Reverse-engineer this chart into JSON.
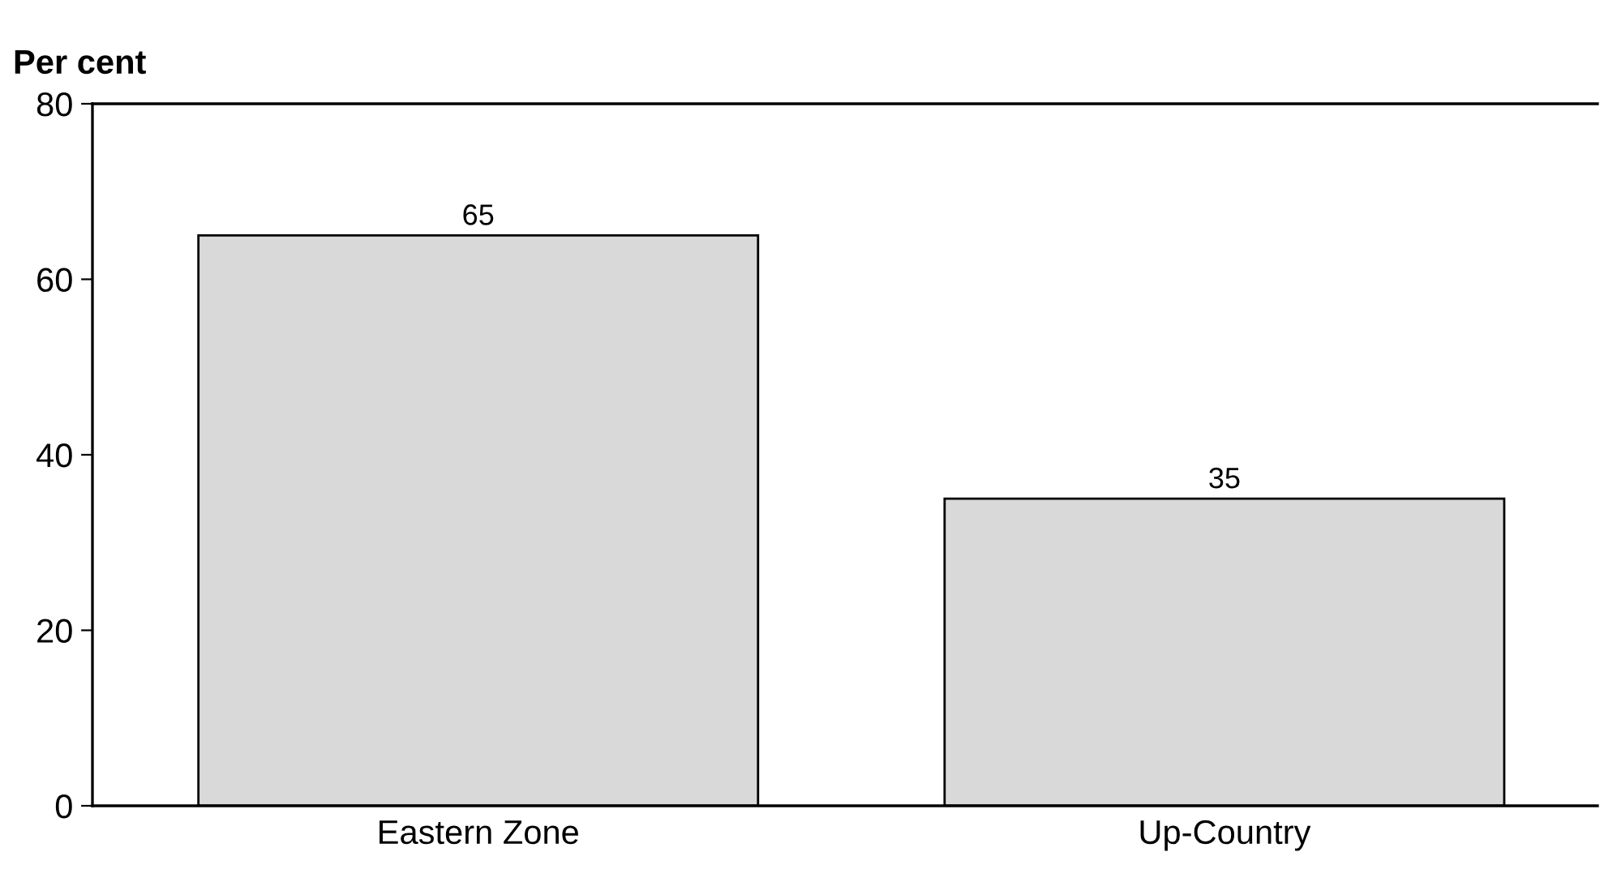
{
  "chart_data": {
    "type": "bar",
    "ylabel": "Per cent",
    "categories": [
      "Eastern Zone",
      "Up-Country"
    ],
    "values": [
      65,
      35
    ],
    "color": "#d9d9d9",
    "ylim": [
      0,
      80
    ],
    "yticks": [
      0,
      20,
      40,
      60,
      80
    ],
    "grid": false,
    "data_labels": true
  }
}
